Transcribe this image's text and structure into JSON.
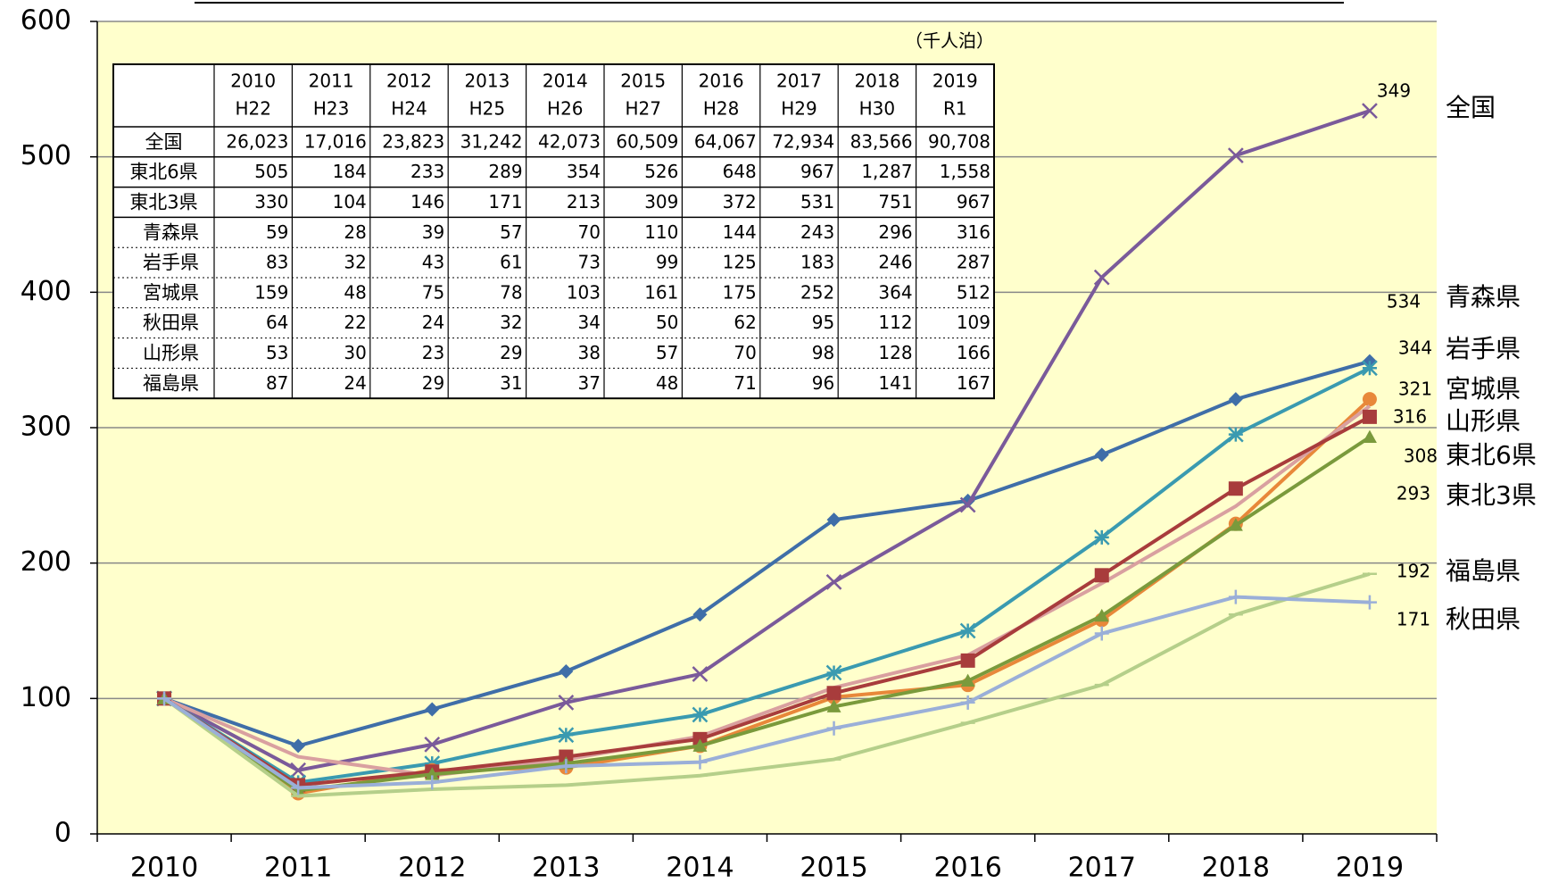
{
  "chart_data": {
    "type": "line",
    "categories": [
      "2010",
      "2011",
      "2012",
      "2013",
      "2014",
      "2015",
      "2016",
      "2017",
      "2018",
      "2019"
    ],
    "ylim": [
      0,
      600
    ],
    "yticks": [
      0,
      100,
      200,
      300,
      400,
      500,
      600
    ],
    "grid": true,
    "series": [
      {
        "name": "全国",
        "color": "#3f6ea8",
        "marker": "diamond",
        "values": [
          100,
          65,
          92,
          120,
          162,
          232,
          246,
          280,
          321,
          349
        ]
      },
      {
        "name": "青森県",
        "color": "#7a5a9a",
        "marker": "x",
        "values": [
          100,
          47,
          66,
          97,
          118,
          186,
          243,
          411,
          501,
          534
        ]
      },
      {
        "name": "岩手県",
        "color": "#3a9ab0",
        "marker": "star",
        "values": [
          100,
          38,
          52,
          73,
          88,
          119,
          150,
          219,
          295,
          344
        ]
      },
      {
        "name": "宮城県",
        "color": "#e8883a",
        "marker": "circle",
        "values": [
          100,
          30,
          47,
          49,
          65,
          101,
          110,
          158,
          229,
          321
        ]
      },
      {
        "name": "山形県",
        "color": "#d9a0a0",
        "marker": "none",
        "values": [
          100,
          57,
          43,
          55,
          72,
          108,
          132,
          185,
          242,
          316
        ]
      },
      {
        "name": "東北6県",
        "color": "#a83c3c",
        "marker": "square",
        "values": [
          100,
          36,
          46,
          57,
          70,
          104,
          128,
          191,
          255,
          308
        ]
      },
      {
        "name": "東北3県",
        "color": "#7a9a3c",
        "marker": "triangle",
        "values": [
          100,
          32,
          44,
          52,
          65,
          94,
          113,
          161,
          228,
          293
        ]
      },
      {
        "name": "福島県",
        "color": "#b5cf8a",
        "marker": "dash",
        "values": [
          100,
          28,
          33,
          36,
          43,
          55,
          82,
          110,
          162,
          192
        ]
      },
      {
        "name": "秋田県",
        "color": "#9aafd8",
        "marker": "plus",
        "values": [
          100,
          34,
          38,
          50,
          53,
          78,
          97,
          148,
          175,
          171
        ]
      }
    ]
  },
  "table": {
    "unit": "（千人泊）",
    "years": [
      "2010",
      "2011",
      "2012",
      "2013",
      "2014",
      "2015",
      "2016",
      "2017",
      "2018",
      "2019"
    ],
    "eras": [
      "H22",
      "H23",
      "H24",
      "H25",
      "H26",
      "H27",
      "H28",
      "H29",
      "H30",
      "R1"
    ],
    "rows": [
      {
        "label": "全国",
        "values": [
          "26,023",
          "17,016",
          "23,823",
          "31,242",
          "42,073",
          "60,509",
          "64,067",
          "72,934",
          "83,566",
          "90,708"
        ]
      },
      {
        "label": "東北6県",
        "values": [
          "505",
          "184",
          "233",
          "289",
          "354",
          "526",
          "648",
          "967",
          "1,287",
          "1,558"
        ]
      },
      {
        "label": "東北3県",
        "values": [
          "330",
          "104",
          "146",
          "171",
          "213",
          "309",
          "372",
          "531",
          "751",
          "967"
        ]
      },
      {
        "label": "青森県",
        "values": [
          "59",
          "28",
          "39",
          "57",
          "70",
          "110",
          "144",
          "243",
          "296",
          "316"
        ]
      },
      {
        "label": "岩手県",
        "values": [
          "83",
          "32",
          "43",
          "61",
          "73",
          "99",
          "125",
          "183",
          "246",
          "287"
        ]
      },
      {
        "label": "宮城県",
        "values": [
          "159",
          "48",
          "75",
          "78",
          "103",
          "161",
          "175",
          "252",
          "364",
          "512"
        ]
      },
      {
        "label": "秋田県",
        "values": [
          "64",
          "22",
          "24",
          "32",
          "34",
          "50",
          "62",
          "95",
          "112",
          "109"
        ]
      },
      {
        "label": "山形県",
        "values": [
          "53",
          "30",
          "23",
          "29",
          "38",
          "57",
          "70",
          "98",
          "128",
          "166"
        ]
      },
      {
        "label": "福島県",
        "values": [
          "87",
          "24",
          "29",
          "31",
          "37",
          "48",
          "71",
          "96",
          "141",
          "167"
        ]
      }
    ]
  }
}
